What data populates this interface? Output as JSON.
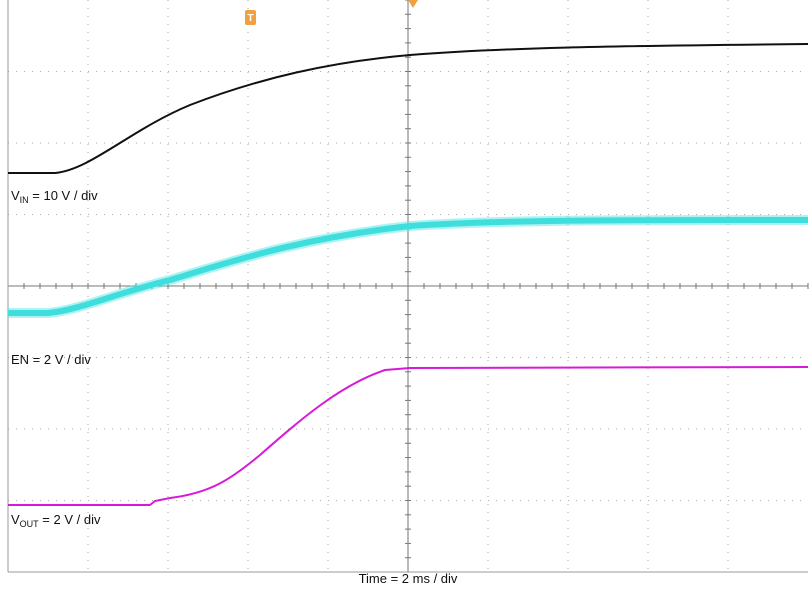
{
  "traces": [
    {
      "symbol": "V",
      "subscript": "IN",
      "scale": " = 10 V / div"
    },
    {
      "symbol": "EN",
      "scale": " = 2 V / div"
    },
    {
      "symbol": "V",
      "subscript": "OUT",
      "scale": " = 2 V / div"
    }
  ],
  "time_scale": "Time = 2 ms / div",
  "trigger_marker": "T"
}
